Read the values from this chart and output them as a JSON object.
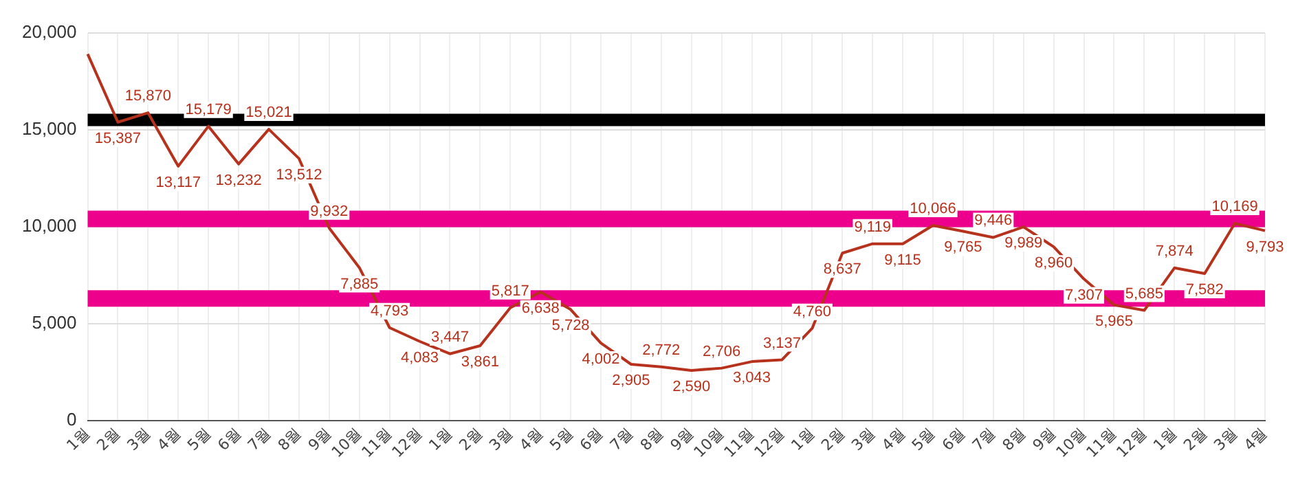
{
  "chart_data": {
    "type": "line",
    "categories": [
      "1월",
      "2월",
      "3월",
      "4월",
      "5월",
      "6월",
      "7월",
      "8월",
      "9월",
      "10월",
      "11월",
      "12월",
      "1월",
      "2월",
      "3월",
      "4월",
      "5월",
      "6월",
      "7월",
      "8월",
      "9월",
      "10월",
      "11월",
      "12월",
      "1월",
      "2월",
      "3월",
      "4월",
      "5월",
      "6월",
      "7월",
      "8월",
      "9월",
      "10월",
      "11월",
      "12월",
      "1월",
      "2월",
      "3월",
      "4월"
    ],
    "series": [
      {
        "color": "#b7321c",
        "values": [
          18900,
          15387,
          15870,
          13117,
          15179,
          13232,
          15021,
          13512,
          9932,
          7885,
          4793,
          4083,
          3447,
          3861,
          5817,
          6638,
          5728,
          4002,
          2905,
          2772,
          2590,
          2706,
          3043,
          3137,
          4760,
          8637,
          9119,
          9115,
          10066,
          9765,
          9446,
          9989,
          8960,
          7307,
          5965,
          5685,
          7874,
          7582,
          10169,
          9793
        ],
        "value_labels": [
          null,
          "15,387",
          "15,870",
          "13,117",
          "15,179",
          "13,232",
          "15,021",
          "13,512",
          "9,932",
          "7,885",
          "4,793",
          "4,083",
          "3,447",
          "3,861",
          "5,817",
          "6,638",
          "5,728",
          "4,002",
          "2,905",
          "2,772",
          "2,590",
          "2,706",
          "3,043",
          "3,137",
          "4,760",
          "8,637",
          "9,119",
          "9,115",
          "10,066",
          "9,765",
          "9,446",
          "9,989",
          "8,960",
          "7,307",
          "5,965",
          "5,685",
          "7,874",
          "7,582",
          "10,169",
          "9,793"
        ]
      }
    ],
    "ylim": [
      0,
      20000
    ],
    "yticks": [
      {
        "value": 0,
        "label": "0"
      },
      {
        "value": 5000,
        "label": "5,000"
      },
      {
        "value": 10000,
        "label": "10,000"
      },
      {
        "value": 15000,
        "label": "15,000"
      },
      {
        "value": 20000,
        "label": "20,000"
      }
    ],
    "ref_lines": [
      {
        "axis": "y",
        "value": 15500,
        "color": "#000000"
      },
      {
        "axis": "y",
        "value": 10400,
        "color": "#ec008c"
      },
      {
        "axis": "y",
        "value": 6300,
        "color": "#ec008c"
      }
    ],
    "grid": true,
    "legend": false,
    "marker": "none",
    "line_style": "solid"
  }
}
